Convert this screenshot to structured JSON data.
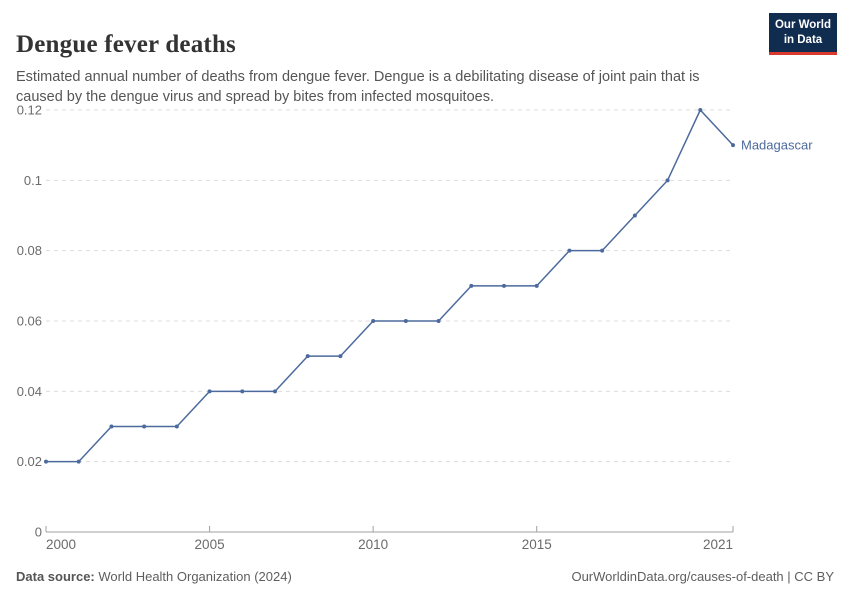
{
  "header": {
    "title": "Dengue fever deaths",
    "subtitle": "Estimated annual number of deaths from dengue fever. Dengue is a debilitating disease of joint pain that is caused by the dengue virus and spread by bites from infected mosquitoes.",
    "logo": {
      "line1": "Our World",
      "line2": "in Data"
    }
  },
  "footer": {
    "source_label": "Data source:",
    "source_value": "World Health Organization (2024)",
    "attribution": "OurWorldinData.org/causes-of-death | CC BY"
  },
  "colors": {
    "series": "#4c6a9d",
    "grid": "#dcdcdc",
    "axis": "#a0a0a0",
    "tick_text": "#6b6b6b"
  },
  "chart_data": {
    "type": "line",
    "title": "Dengue fever deaths",
    "x": [
      2000,
      2001,
      2002,
      2003,
      2004,
      2005,
      2006,
      2007,
      2008,
      2009,
      2010,
      2011,
      2012,
      2013,
      2014,
      2015,
      2016,
      2017,
      2018,
      2019,
      2020,
      2021
    ],
    "series": [
      {
        "name": "Madagascar",
        "values": [
          0.02,
          0.02,
          0.03,
          0.03,
          0.03,
          0.04,
          0.04,
          0.04,
          0.05,
          0.05,
          0.06,
          0.06,
          0.06,
          0.07,
          0.07,
          0.07,
          0.08,
          0.08,
          0.09,
          0.1,
          0.12,
          0.11
        ]
      }
    ],
    "xlim": [
      2000,
      2021
    ],
    "ylim": [
      0,
      0.12
    ],
    "x_ticks": [
      2000,
      2005,
      2010,
      2015,
      2021
    ],
    "y_ticks": [
      0,
      0.02,
      0.04,
      0.06,
      0.08,
      0.1,
      0.12
    ],
    "grid": true,
    "legend_position": "end-of-line",
    "end_label": "Madagascar"
  }
}
